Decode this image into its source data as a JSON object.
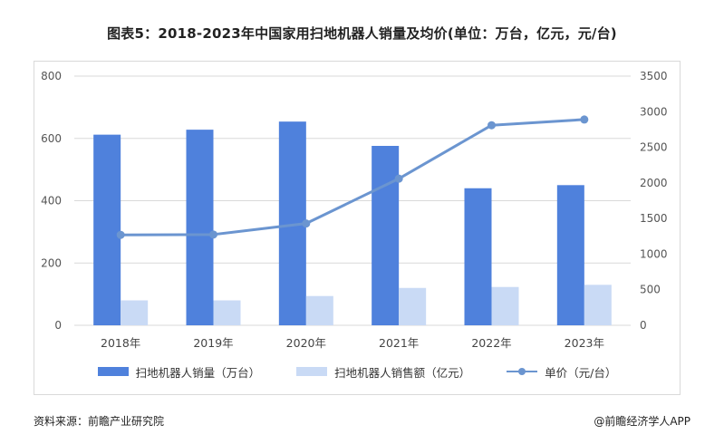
{
  "title": "图表5：2018-2023年中国家用扫地机器人销量及均价(单位：万台，亿元，元/台)",
  "footer": {
    "source": "资料来源：前瞻产业研究院",
    "credit": "@前瞻经济学人APP"
  },
  "colors": {
    "sales_volume": "#4f81dc",
    "sales_value": "#c9daf5",
    "unit_price": "#6b95d0",
    "grid": "#d9d9d9"
  },
  "chart_data": {
    "type": "bar",
    "title": "图表5：2018-2023年中国家用扫地机器人销量及均价(单位：万台，亿元，元/台)",
    "categories": [
      "2018年",
      "2019年",
      "2020年",
      "2021年",
      "2022年",
      "2023年"
    ],
    "left_axis": {
      "min": 0,
      "max": 800,
      "ticks": [
        0,
        200,
        400,
        600,
        800
      ]
    },
    "right_axis": {
      "min": 0,
      "max": 3500,
      "ticks": [
        0,
        500,
        1000,
        1500,
        2000,
        2500,
        3000,
        3500
      ]
    },
    "series": [
      {
        "name": "扫地机器人销量（万台）",
        "type": "bar",
        "axis": "left",
        "values": [
          612,
          628,
          654,
          576,
          440,
          450
        ]
      },
      {
        "name": "扫地机器人销售额（亿元）",
        "type": "bar",
        "axis": "left",
        "values": [
          80,
          80,
          94,
          120,
          123,
          130
        ]
      },
      {
        "name": "单价（元/台）",
        "type": "line",
        "axis": "right",
        "values": [
          1270,
          1275,
          1430,
          2060,
          2810,
          2890
        ]
      }
    ],
    "legend_position": "bottom",
    "grid": true
  }
}
